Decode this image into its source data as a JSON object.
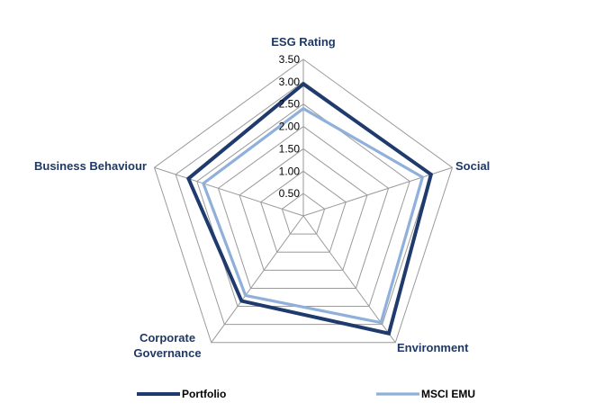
{
  "chart_data": {
    "type": "radar",
    "axes": [
      "ESG Rating",
      "Social",
      "Environment",
      "Corporate Governance",
      "Business Behaviour"
    ],
    "axis_label_lines": [
      [
        "ESG Rating"
      ],
      [
        "Social"
      ],
      [
        "Environment"
      ],
      [
        "Corporate",
        "Governance"
      ],
      [
        "Business Behaviour"
      ]
    ],
    "rmin": 0,
    "rmax": 3.5,
    "tick_step": 0.5,
    "tick_labels": [
      "0.50",
      "1.00",
      "1.50",
      "2.00",
      "2.50",
      "3.00",
      "3.50"
    ],
    "grid": true,
    "legend_position": "bottom",
    "series": [
      {
        "name": "Portfolio",
        "color": "#1f3b6e",
        "values": [
          2.95,
          3.0,
          3.25,
          2.35,
          2.7
        ]
      },
      {
        "name": "MSCI EMU",
        "color": "#8fb0da",
        "values": [
          2.4,
          2.8,
          2.95,
          2.2,
          2.35
        ]
      }
    ]
  }
}
